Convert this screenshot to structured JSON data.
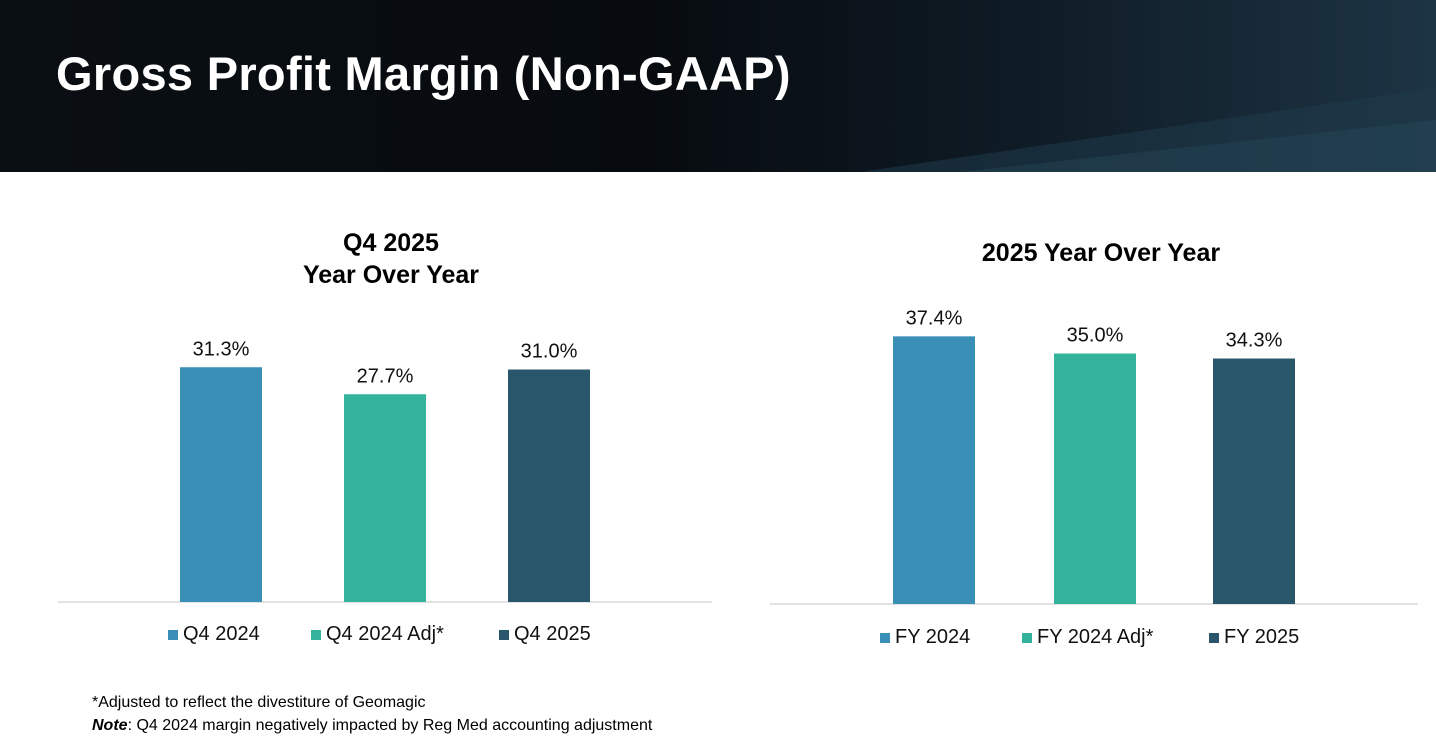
{
  "header": {
    "title": "Gross Profit Margin (Non-GAAP)"
  },
  "colors": {
    "header_bg": "#070b0f",
    "bar_blue": "#3a8fb7",
    "bar_teal": "#33b39c",
    "bar_navy": "#2a566b"
  },
  "chart_data": [
    {
      "type": "bar",
      "title_lines": [
        "Q4 2025",
        "Year Over Year"
      ],
      "categories": [
        "Q4 2024",
        "Q4 2024 Adj*",
        "Q4 2025"
      ],
      "values": [
        31.3,
        27.7,
        31.0
      ],
      "data_labels": [
        "31.3%",
        "27.7%",
        "31.0%"
      ],
      "colors": [
        "#3a8fb7",
        "#33b39c",
        "#2a566b"
      ],
      "ylim": [
        0,
        40
      ],
      "legend_position": "bottom"
    },
    {
      "type": "bar",
      "title_lines": [
        "2025 Year Over Year"
      ],
      "categories": [
        "FY 2024",
        "FY 2024 Adj*",
        "FY 2025"
      ],
      "values": [
        37.4,
        35.0,
        34.3
      ],
      "data_labels": [
        "37.4%",
        "35.0%",
        "34.3%"
      ],
      "colors": [
        "#3a8fb7",
        "#33b39c",
        "#2a566b"
      ],
      "ylim": [
        0,
        40
      ],
      "legend_position": "bottom"
    }
  ],
  "footnotes": {
    "adjusted": "*Adjusted to reflect the divestiture of Geomagic",
    "note_label": "Note",
    "note_text": ": Q4 2024 margin negatively impacted by Reg Med accounting adjustment"
  }
}
